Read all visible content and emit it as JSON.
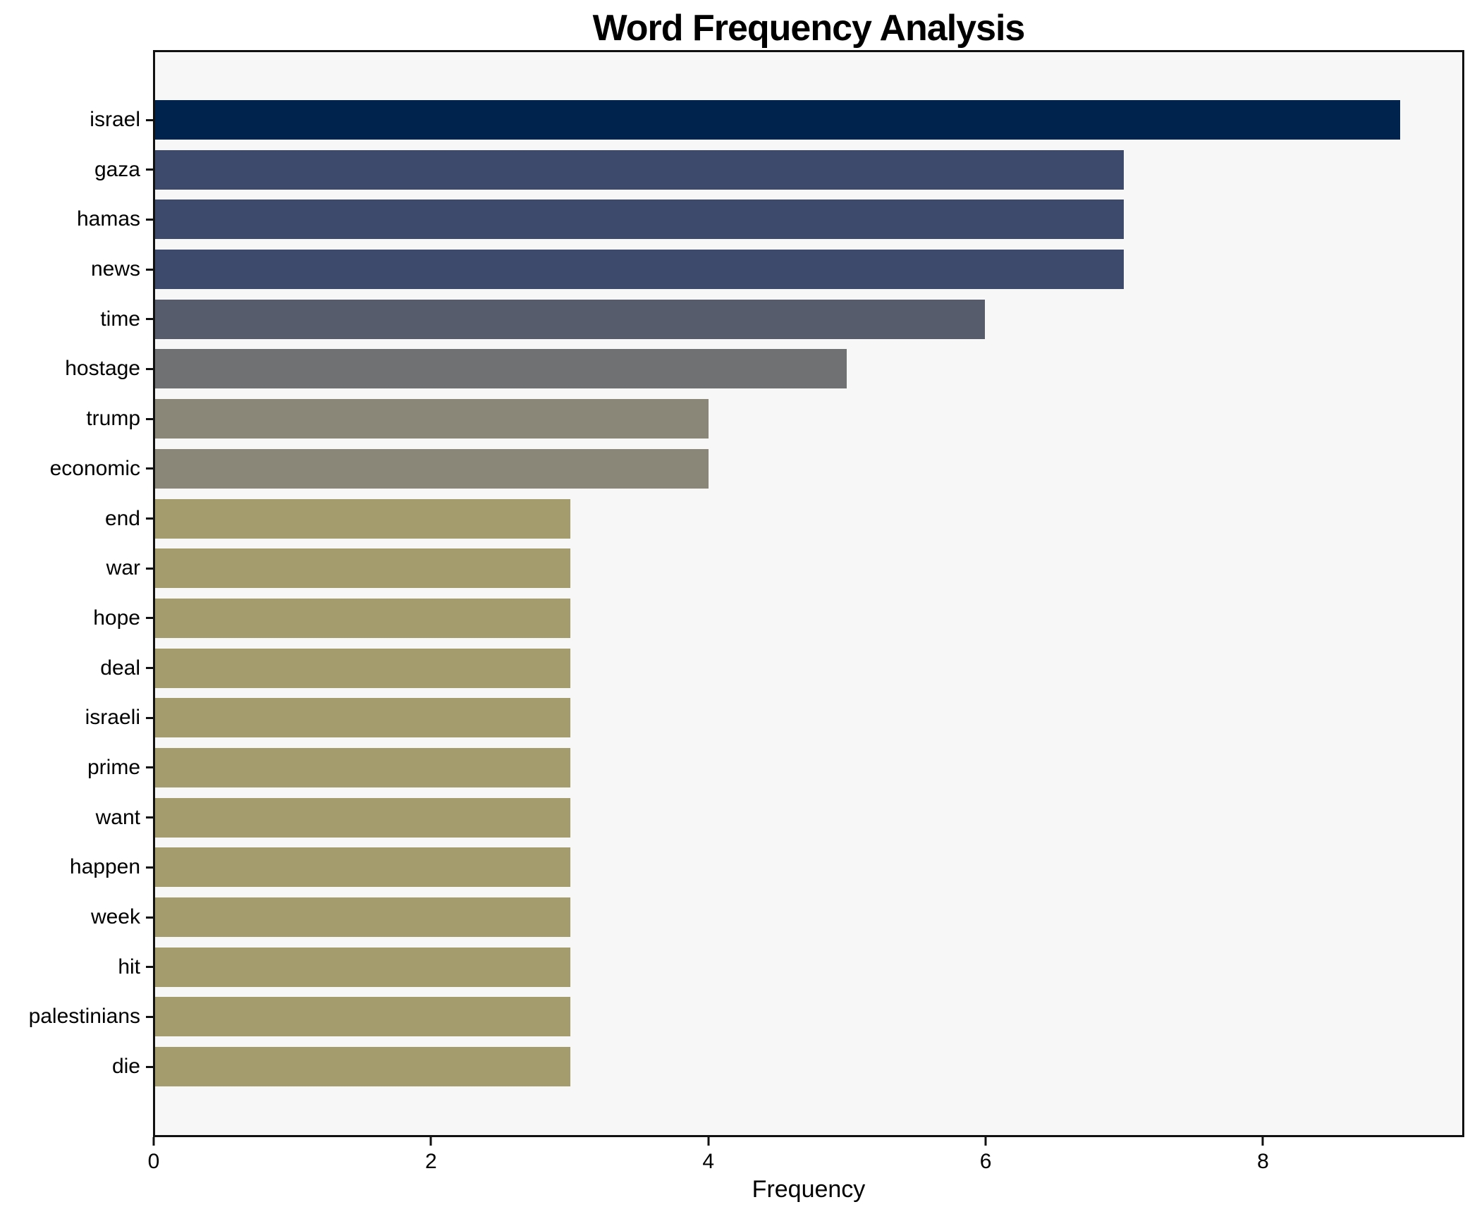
{
  "chart_data": {
    "type": "bar",
    "orientation": "horizontal",
    "title": "Word Frequency Analysis",
    "xlabel": "Frequency",
    "ylabel": "",
    "categories": [
      "israel",
      "gaza",
      "hamas",
      "news",
      "time",
      "hostage",
      "trump",
      "economic",
      "end",
      "war",
      "hope",
      "deal",
      "israeli",
      "prime",
      "want",
      "happen",
      "week",
      "hit",
      "palestinians",
      "die"
    ],
    "values": [
      9,
      7,
      7,
      7,
      6,
      5,
      4,
      4,
      3,
      3,
      3,
      3,
      3,
      3,
      3,
      3,
      3,
      3,
      3,
      3
    ],
    "bar_colors": [
      "#00234e",
      "#3d4a6c",
      "#3d4a6c",
      "#3d4a6c",
      "#565c6c",
      "#6f7172",
      "#8a8778",
      "#8a8778",
      "#a59c6e",
      "#a59c6e",
      "#a59c6e",
      "#a59c6e",
      "#a59c6e",
      "#a59c6e",
      "#a59c6e",
      "#a59c6e",
      "#a59c6e",
      "#a59c6e",
      "#a59c6e",
      "#a59c6e"
    ],
    "xticks": [
      0,
      2,
      4,
      6,
      8
    ],
    "xlim": [
      0,
      9.447
    ],
    "grid": false,
    "legend": null,
    "plot_background": "#f7f7f8",
    "figure_background": "#ffffff",
    "spine_color": "#111111"
  }
}
